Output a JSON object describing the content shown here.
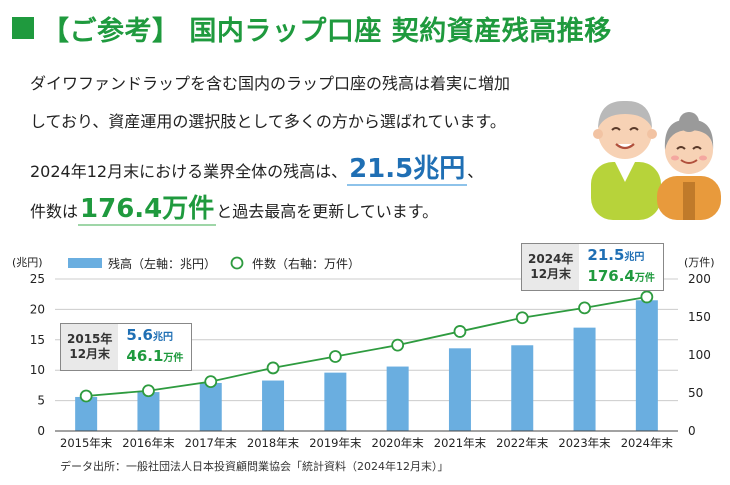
{
  "header": {
    "title": "【ご参考】 国内ラップ口座 契約資産残高推移"
  },
  "intro": {
    "line1": "ダイワファンドラップを含む国内のラップ口座の残高は着実に増加",
    "line2": "しており、資産運用の選択肢として多くの方から選ばれています。",
    "line3_prefix": "2024年12月末における業界全体の残高は、",
    "line3_value": "21.5兆円",
    "line3_suffix": "、",
    "line4_prefix": "件数は",
    "line4_value": "176.4万件",
    "line4_suffix": "と過去最高を更新しています。"
  },
  "chart_data": {
    "type": "bar",
    "categories": [
      "2015年末",
      "2016年末",
      "2017年末",
      "2018年末",
      "2019年末",
      "2020年末",
      "2021年末",
      "2022年末",
      "2023年末",
      "2024年末"
    ],
    "series": [
      {
        "name": "残高（左軸：兆円）",
        "type": "bar",
        "axis": "left",
        "values": [
          5.6,
          6.4,
          7.9,
          8.3,
          9.6,
          10.6,
          13.6,
          14.1,
          17.0,
          21.5
        ],
        "color": "#6aaee0"
      },
      {
        "name": "件数（右軸：万件）",
        "type": "line",
        "axis": "right",
        "values": [
          46.1,
          53,
          65,
          83,
          98,
          113,
          131,
          149,
          162,
          176.4
        ],
        "color": "#2e9b3f"
      }
    ],
    "y_left": {
      "label": "(兆円)",
      "range": [
        0,
        25
      ],
      "ticks": [
        "0",
        "5",
        "10",
        "15",
        "20",
        "25"
      ]
    },
    "y_right": {
      "label": "(万件)",
      "range": [
        0,
        200
      ],
      "ticks": [
        "0",
        "50",
        "100",
        "150",
        "200"
      ]
    },
    "grid": true,
    "legend": "top-left",
    "callouts": [
      {
        "year_line1": "2015年",
        "year_line2": "12月末",
        "balance": "5.6",
        "balance_unit": "兆円",
        "count": "46.1",
        "count_unit": "万件"
      },
      {
        "year_line1": "2024年",
        "year_line2": "12月末",
        "balance": "21.5",
        "balance_unit": "兆円",
        "count": "176.4",
        "count_unit": "万件"
      }
    ]
  },
  "source": "データ出所：一般社団法人日本投資顧問業協会「統計資料（2024年12月末）」",
  "colors": {
    "accent_green": "#1f9a3e",
    "accent_blue": "#1f6fb4",
    "bar": "#6aaee0",
    "line": "#2e9b3f"
  },
  "illustration": "elderly-couple-illustration"
}
